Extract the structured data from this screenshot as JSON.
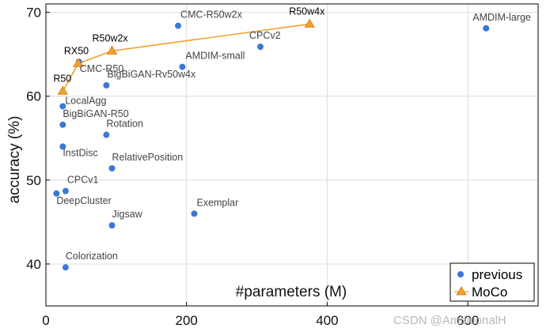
{
  "chart_data": {
    "type": "scatter",
    "xlabel": "#parameters (M)",
    "ylabel": "accuracy (%)",
    "xlim": [
      0,
      700
    ],
    "ylim": [
      35,
      71
    ],
    "xticks": [
      0,
      200,
      400,
      600
    ],
    "yticks": [
      40,
      50,
      60,
      70
    ],
    "grid": true,
    "legend_position": "bottom-right",
    "colors": {
      "previous": "#3a78d8",
      "moco": "#f0a030",
      "moco_edge": "#cf7d10"
    },
    "series": [
      {
        "name": "previous",
        "marker": "circle",
        "points": [
          {
            "label": "CMC-R50w2x",
            "x": 188,
            "y": 68.4
          },
          {
            "label": "AMDIM-large",
            "x": 626,
            "y": 68.1
          },
          {
            "label": "CPCv2",
            "x": 305,
            "y": 65.9
          },
          {
            "label": "CMC-R50",
            "x": 47,
            "y": 64.1
          },
          {
            "label": "AMDIM-small",
            "x": 194,
            "y": 63.5
          },
          {
            "label": "BigBiGAN-Rv50w4x",
            "x": 86,
            "y": 61.3
          },
          {
            "label": "LocalAgg",
            "x": 24,
            "y": 58.8
          },
          {
            "label": "BigBiGAN-R50",
            "x": 24,
            "y": 56.6
          },
          {
            "label": "Rotation",
            "x": 86,
            "y": 55.4
          },
          {
            "label": "InstDisc",
            "x": 24,
            "y": 54.0
          },
          {
            "label": "RelativePosition",
            "x": 94,
            "y": 51.4
          },
          {
            "label": "CPCv1",
            "x": 28,
            "y": 48.7
          },
          {
            "label": "DeepCluster",
            "x": 15,
            "y": 48.4
          },
          {
            "label": "Exemplar",
            "x": 211,
            "y": 46.0
          },
          {
            "label": "Jigsaw",
            "x": 94,
            "y": 44.6
          },
          {
            "label": "Colorization",
            "x": 28,
            "y": 39.6
          }
        ]
      },
      {
        "name": "MoCo",
        "marker": "triangle",
        "line": true,
        "points": [
          {
            "label": "R50",
            "x": 24,
            "y": 60.6
          },
          {
            "label": "RX50",
            "x": 46,
            "y": 63.9
          },
          {
            "label": "R50w2x",
            "x": 94,
            "y": 65.4
          },
          {
            "label": "R50w4x",
            "x": 375,
            "y": 68.6
          }
        ]
      }
    ]
  },
  "watermark": "CSDN @AmbitionalH"
}
